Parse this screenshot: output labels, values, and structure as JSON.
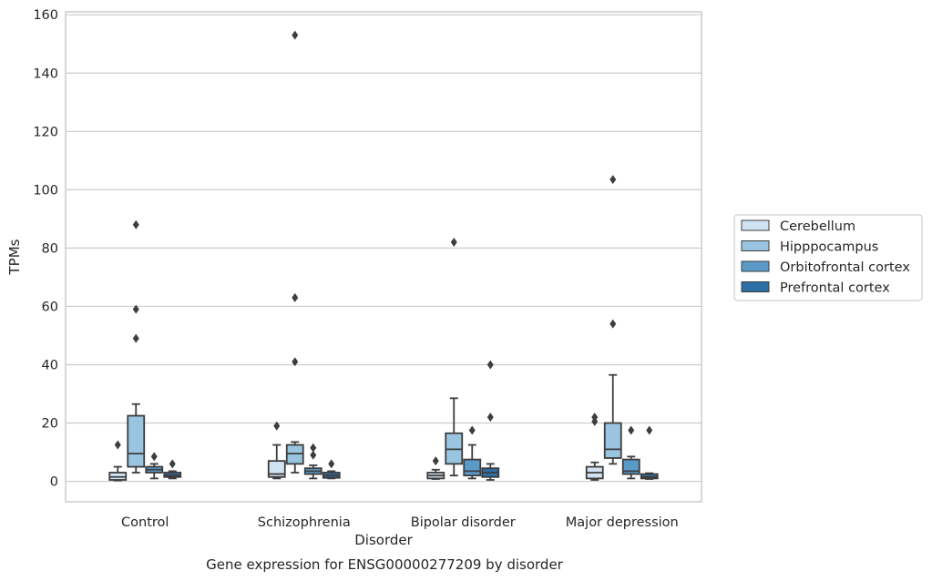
{
  "chart_data": {
    "type": "box",
    "title": "",
    "caption": "Gene expression for ENSG00000277209 by disorder",
    "xlabel": "Disorder",
    "ylabel": "TPMs",
    "ylim": [
      -7,
      161
    ],
    "yticks": [
      0,
      20,
      40,
      60,
      80,
      100,
      120,
      140,
      160
    ],
    "grid": "horizontal",
    "legend_position": "right",
    "categories": [
      "Control",
      "Schizophrenia",
      "Bipolar disorder",
      "Major depression"
    ],
    "series": [
      {
        "name": "Cerebellum",
        "color": "#d1e2f2",
        "boxes": [
          {
            "whisker_low": 0.3,
            "q1": 0.5,
            "median": 1.5,
            "q3": 3.0,
            "whisker_high": 5.0,
            "outliers": [
              12.5
            ]
          },
          {
            "whisker_low": 1.0,
            "q1": 1.5,
            "median": 2.5,
            "q3": 7.0,
            "whisker_high": 12.5,
            "outliers": [
              19.0
            ]
          },
          {
            "whisker_low": 0.8,
            "q1": 1.0,
            "median": 2.0,
            "q3": 3.0,
            "whisker_high": 4.0,
            "outliers": [
              7.0
            ]
          },
          {
            "whisker_low": 0.5,
            "q1": 1.0,
            "median": 3.0,
            "q3": 5.0,
            "whisker_high": 6.5,
            "outliers": [
              20.5,
              22.0
            ]
          }
        ]
      },
      {
        "name": "Hipppocampus",
        "color": "#9ac5e0",
        "boxes": [
          {
            "whisker_low": 3.0,
            "q1": 5.0,
            "median": 9.5,
            "q3": 22.5,
            "whisker_high": 26.5,
            "outliers": [
              49.0,
              59.0,
              88.0
            ]
          },
          {
            "whisker_low": 3.0,
            "q1": 6.0,
            "median": 9.5,
            "q3": 12.5,
            "whisker_high": 13.5,
            "outliers": [
              41.0,
              63.0,
              153.0
            ]
          },
          {
            "whisker_low": 2.0,
            "q1": 6.0,
            "median": 11.0,
            "q3": 16.5,
            "whisker_high": 28.5,
            "outliers": [
              82.0
            ]
          },
          {
            "whisker_low": 6.0,
            "q1": 8.0,
            "median": 11.0,
            "q3": 20.0,
            "whisker_high": 36.5,
            "outliers": [
              54.0,
              103.5
            ]
          }
        ]
      },
      {
        "name": "Orbitofrontal cortex",
        "color": "#5a9ac9",
        "boxes": [
          {
            "whisker_low": 1.0,
            "q1": 3.0,
            "median": 4.0,
            "q3": 5.0,
            "whisker_high": 6.0,
            "outliers": [
              8.5
            ]
          },
          {
            "whisker_low": 1.0,
            "q1": 2.5,
            "median": 3.5,
            "q3": 4.5,
            "whisker_high": 5.5,
            "outliers": [
              9.0,
              11.5
            ]
          },
          {
            "whisker_low": 1.0,
            "q1": 2.0,
            "median": 3.5,
            "q3": 7.5,
            "whisker_high": 12.5,
            "outliers": [
              17.5
            ]
          },
          {
            "whisker_low": 1.0,
            "q1": 2.5,
            "median": 3.5,
            "q3": 7.5,
            "whisker_high": 8.5,
            "outliers": [
              17.5
            ]
          }
        ]
      },
      {
        "name": "Prefrontal cortex",
        "color": "#2c6ea6",
        "boxes": [
          {
            "whisker_low": 1.0,
            "q1": 1.5,
            "median": 2.0,
            "q3": 3.0,
            "whisker_high": 3.5,
            "outliers": [
              6.0
            ]
          },
          {
            "whisker_low": 1.0,
            "q1": 1.2,
            "median": 2.0,
            "q3": 3.0,
            "whisker_high": 3.5,
            "outliers": [
              6.0
            ]
          },
          {
            "whisker_low": 0.5,
            "q1": 1.5,
            "median": 3.0,
            "q3": 4.5,
            "whisker_high": 6.0,
            "outliers": [
              22.0,
              40.0
            ]
          },
          {
            "whisker_low": 0.8,
            "q1": 1.0,
            "median": 1.5,
            "q3": 2.5,
            "whisker_high": 2.8,
            "outliers": [
              17.5
            ]
          }
        ]
      }
    ]
  }
}
